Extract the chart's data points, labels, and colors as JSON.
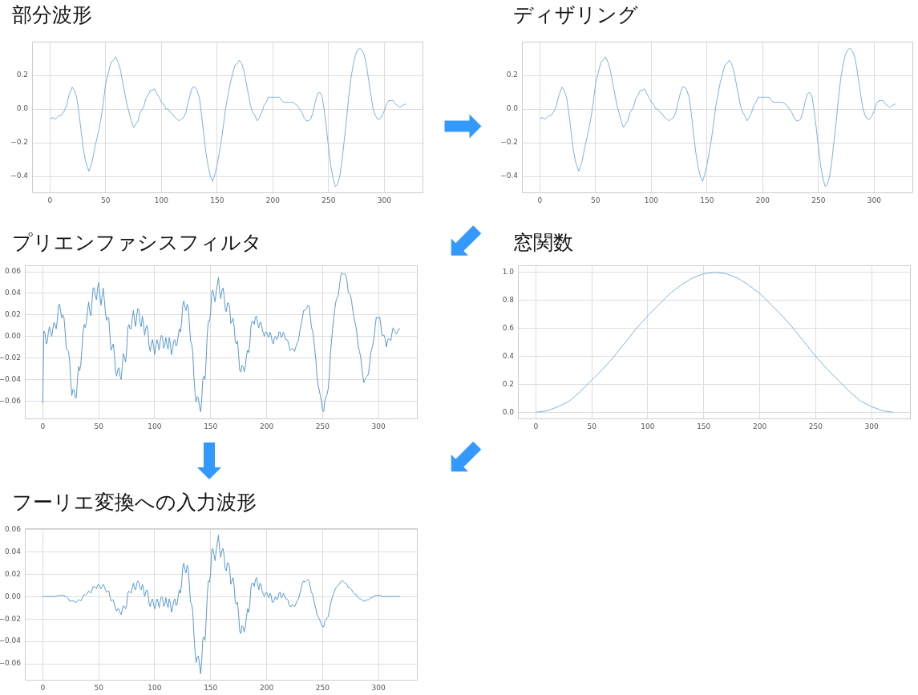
{
  "chart_data": [
    {
      "type": "line",
      "title": "部分波形",
      "color": "#80b2dc",
      "grid": true,
      "xlim": [
        -16,
        335
      ],
      "xticks": [
        0,
        50,
        100,
        150,
        200,
        250,
        300
      ],
      "ylim": [
        -0.5,
        0.4
      ],
      "yticks": [
        {
          "value": -0.4,
          "label": "−0.4"
        },
        {
          "value": -0.2,
          "label": "−0.2"
        },
        {
          "value": 0,
          "label": "0.0"
        },
        {
          "value": 0.2,
          "label": "0.2"
        }
      ],
      "x": [
        0,
        2,
        5,
        8,
        10,
        13,
        15,
        17,
        20,
        22,
        24,
        26,
        28,
        30,
        32,
        35,
        38,
        40,
        42,
        44,
        46,
        48,
        50,
        53,
        55,
        57,
        59,
        61,
        63,
        65,
        67,
        69,
        71,
        73,
        75,
        77,
        79,
        81,
        84,
        86,
        88,
        90,
        92,
        94,
        96,
        98,
        100,
        102,
        104,
        106,
        108,
        110,
        112,
        114,
        116,
        118,
        120,
        122,
        124,
        126,
        128,
        130,
        132,
        134,
        136,
        138,
        140,
        142,
        144,
        146,
        148,
        150,
        152,
        154,
        156,
        158,
        160,
        162,
        164,
        166,
        168,
        170,
        172,
        174,
        176,
        178,
        180,
        182,
        184,
        186,
        188,
        190,
        192,
        194,
        196,
        198,
        200,
        202,
        204,
        206,
        208,
        210,
        212,
        214,
        216,
        218,
        220,
        222,
        224,
        226,
        228,
        230,
        232,
        234,
        236,
        238,
        240,
        242,
        244,
        246,
        248,
        250,
        252,
        254,
        256,
        258,
        260,
        262,
        264,
        266,
        268,
        270,
        272,
        274,
        276,
        278,
        280,
        282,
        284,
        286,
        288,
        290,
        292,
        294,
        296,
        298,
        300,
        302,
        304,
        306,
        308,
        310,
        312,
        314,
        316,
        319
      ],
      "values": [
        -0.06,
        -0.05,
        -0.06,
        -0.04,
        -0.04,
        -0.01,
        0.02,
        0.08,
        0.13,
        0.11,
        0.07,
        -0.02,
        -0.13,
        -0.24,
        -0.31,
        -0.37,
        -0.31,
        -0.24,
        -0.18,
        -0.12,
        -0.05,
        0.04,
        0.15,
        0.23,
        0.28,
        0.29,
        0.31,
        0.28,
        0.24,
        0.17,
        0.1,
        0.03,
        -0.02,
        -0.07,
        -0.11,
        -0.09,
        -0.07,
        -0.02,
        0.01,
        0.06,
        0.08,
        0.11,
        0.11,
        0.12,
        0.09,
        0.07,
        0.04,
        0.03,
        0,
        0,
        -0.02,
        -0.03,
        -0.05,
        -0.06,
        -0.07,
        -0.06,
        -0.05,
        -0.02,
        0.04,
        0.09,
        0.13,
        0.13,
        0.11,
        0.07,
        -0.03,
        -0.15,
        -0.26,
        -0.34,
        -0.4,
        -0.43,
        -0.39,
        -0.33,
        -0.26,
        -0.18,
        -0.08,
        0.02,
        0.09,
        0.16,
        0.21,
        0.26,
        0.27,
        0.29,
        0.27,
        0.23,
        0.16,
        0.09,
        0.02,
        -0.02,
        -0.04,
        -0.07,
        -0.05,
        -0.02,
        0.02,
        0.04,
        0.07,
        0.07,
        0.07,
        0.07,
        0.07,
        0.07,
        0.05,
        0.04,
        0.04,
        0.04,
        0.04,
        0.04,
        0.03,
        0.02,
        0,
        -0.02,
        -0.05,
        -0.07,
        -0.07,
        -0.06,
        -0.02,
        0.04,
        0.09,
        0.1,
        0.08,
        0,
        -0.11,
        -0.23,
        -0.34,
        -0.41,
        -0.46,
        -0.45,
        -0.4,
        -0.31,
        -0.19,
        -0.07,
        0.07,
        0.18,
        0.26,
        0.32,
        0.35,
        0.36,
        0.35,
        0.32,
        0.26,
        0.17,
        0.08,
        0,
        -0.04,
        -0.06,
        -0.06,
        -0.04,
        -0.01,
        0.03,
        0.05,
        0.05,
        0.05,
        0.03,
        0.02,
        0.01,
        0.02,
        0.03
      ]
    },
    {
      "type": "line",
      "title": "ディザリング",
      "color": "#80b2dc",
      "grid": true,
      "xlim": [
        -16,
        335
      ],
      "xticks": [
        0,
        50,
        100,
        150,
        200,
        250,
        300
      ],
      "ylim": [
        -0.5,
        0.4
      ],
      "yticks": [
        {
          "value": -0.4,
          "label": "−0.4"
        },
        {
          "value": -0.2,
          "label": "−0.2"
        },
        {
          "value": 0,
          "label": "0.0"
        },
        {
          "value": 0.2,
          "label": "0.2"
        }
      ],
      "x": [
        0,
        2,
        5,
        8,
        10,
        13,
        15,
        17,
        20,
        22,
        24,
        26,
        28,
        30,
        32,
        35,
        38,
        40,
        42,
        44,
        46,
        48,
        50,
        53,
        55,
        57,
        59,
        61,
        63,
        65,
        67,
        69,
        71,
        73,
        75,
        77,
        79,
        81,
        84,
        86,
        88,
        90,
        92,
        94,
        96,
        98,
        100,
        102,
        104,
        106,
        108,
        110,
        112,
        114,
        116,
        118,
        120,
        122,
        124,
        126,
        128,
        130,
        132,
        134,
        136,
        138,
        140,
        142,
        144,
        146,
        148,
        150,
        152,
        154,
        156,
        158,
        160,
        162,
        164,
        166,
        168,
        170,
        172,
        174,
        176,
        178,
        180,
        182,
        184,
        186,
        188,
        190,
        192,
        194,
        196,
        198,
        200,
        202,
        204,
        206,
        208,
        210,
        212,
        214,
        216,
        218,
        220,
        222,
        224,
        226,
        228,
        230,
        232,
        234,
        236,
        238,
        240,
        242,
        244,
        246,
        248,
        250,
        252,
        254,
        256,
        258,
        260,
        262,
        264,
        266,
        268,
        270,
        272,
        274,
        276,
        278,
        280,
        282,
        284,
        286,
        288,
        290,
        292,
        294,
        296,
        298,
        300,
        302,
        304,
        306,
        308,
        310,
        312,
        314,
        316,
        319
      ],
      "values": [
        -0.06,
        -0.05,
        -0.06,
        -0.04,
        -0.04,
        -0.01,
        0.02,
        0.08,
        0.13,
        0.11,
        0.07,
        -0.02,
        -0.13,
        -0.24,
        -0.31,
        -0.37,
        -0.31,
        -0.24,
        -0.18,
        -0.12,
        -0.05,
        0.04,
        0.15,
        0.23,
        0.28,
        0.29,
        0.31,
        0.28,
        0.24,
        0.17,
        0.1,
        0.03,
        -0.02,
        -0.07,
        -0.11,
        -0.09,
        -0.07,
        -0.02,
        0.01,
        0.06,
        0.08,
        0.11,
        0.11,
        0.12,
        0.09,
        0.07,
        0.04,
        0.03,
        0,
        0,
        -0.02,
        -0.03,
        -0.05,
        -0.06,
        -0.07,
        -0.06,
        -0.05,
        -0.02,
        0.04,
        0.09,
        0.13,
        0.13,
        0.11,
        0.07,
        -0.03,
        -0.15,
        -0.26,
        -0.34,
        -0.4,
        -0.43,
        -0.39,
        -0.33,
        -0.26,
        -0.18,
        -0.08,
        0.02,
        0.09,
        0.16,
        0.21,
        0.26,
        0.27,
        0.29,
        0.27,
        0.23,
        0.16,
        0.09,
        0.02,
        -0.02,
        -0.04,
        -0.07,
        -0.05,
        -0.02,
        0.02,
        0.04,
        0.07,
        0.07,
        0.07,
        0.07,
        0.07,
        0.07,
        0.05,
        0.04,
        0.04,
        0.04,
        0.04,
        0.04,
        0.03,
        0.02,
        0,
        -0.02,
        -0.05,
        -0.07,
        -0.07,
        -0.06,
        -0.02,
        0.04,
        0.09,
        0.1,
        0.08,
        0,
        -0.11,
        -0.23,
        -0.34,
        -0.41,
        -0.46,
        -0.45,
        -0.4,
        -0.31,
        -0.19,
        -0.07,
        0.07,
        0.18,
        0.26,
        0.32,
        0.35,
        0.36,
        0.35,
        0.32,
        0.26,
        0.17,
        0.08,
        0,
        -0.04,
        -0.06,
        -0.06,
        -0.04,
        -0.01,
        0.03,
        0.05,
        0.05,
        0.05,
        0.03,
        0.02,
        0.01,
        0.02,
        0.03
      ]
    },
    {
      "type": "line",
      "title": "プリエンファシスフィルタ",
      "color": "#5b9bd2",
      "grid": true,
      "xlim": [
        -16,
        335
      ],
      "xticks": [
        0,
        50,
        100,
        150,
        200,
        250,
        300
      ],
      "ylim": [
        -0.077,
        0.066
      ],
      "yticks": [
        {
          "value": -0.06,
          "label": "−0.06"
        },
        {
          "value": -0.04,
          "label": "−0.04"
        },
        {
          "value": -0.02,
          "label": "−0.02"
        },
        {
          "value": 0,
          "label": "0.00"
        },
        {
          "value": 0.02,
          "label": "0.02"
        },
        {
          "value": 0.04,
          "label": "0.04"
        },
        {
          "value": 0.06,
          "label": "0.06"
        }
      ],
      "x": [
        0,
        1,
        2,
        3,
        4,
        5,
        6,
        7,
        8,
        9,
        10,
        11,
        12,
        13,
        14,
        15,
        16,
        17,
        18,
        19,
        20,
        21,
        22,
        23,
        24,
        25,
        26,
        27,
        28,
        29,
        30,
        31,
        32,
        33,
        34,
        35,
        36,
        37,
        38,
        39,
        40,
        41,
        42,
        43,
        44,
        45,
        46,
        47,
        48,
        49,
        50,
        51,
        52,
        53,
        54,
        55,
        56,
        57,
        58,
        59,
        60,
        61,
        62,
        63,
        64,
        65,
        66,
        67,
        68,
        69,
        70,
        71,
        72,
        73,
        74,
        75,
        76,
        77,
        78,
        79,
        80,
        81,
        82,
        83,
        84,
        85,
        86,
        87,
        88,
        89,
        90,
        91,
        92,
        93,
        94,
        95,
        96,
        97,
        98,
        99,
        100,
        101,
        102,
        103,
        104,
        105,
        106,
        107,
        108,
        109,
        110,
        111,
        112,
        113,
        114,
        115,
        116,
        117,
        118,
        119,
        120,
        121,
        122,
        123,
        124,
        125,
        126,
        127,
        128,
        129,
        130,
        131,
        132,
        133,
        134,
        135,
        136,
        137,
        138,
        139,
        140,
        141,
        142,
        143,
        144,
        145,
        146,
        147,
        148,
        149,
        150,
        151,
        152,
        153,
        154,
        155,
        156,
        157,
        158,
        159,
        160,
        161,
        162,
        163,
        164,
        165,
        166,
        167,
        168,
        169,
        170,
        171,
        172,
        173,
        174,
        175,
        176,
        177,
        178,
        179,
        180,
        181,
        182,
        183,
        184,
        185,
        186,
        187,
        188,
        189,
        190,
        191,
        192,
        193,
        194,
        195,
        196,
        197,
        198,
        199,
        200,
        201,
        202,
        203,
        204,
        205,
        206,
        207,
        208,
        209,
        210,
        211,
        212,
        213,
        214,
        215,
        216,
        217,
        218,
        219,
        220,
        221,
        222,
        223,
        224,
        225,
        226,
        227,
        228,
        229,
        230,
        231,
        232,
        233,
        234,
        235,
        236,
        237,
        238,
        239,
        240,
        241,
        242,
        243,
        244,
        245,
        246,
        247,
        248,
        249,
        250,
        251,
        252,
        253,
        254,
        255,
        256,
        257,
        258,
        259,
        260,
        261,
        262,
        263,
        264,
        265,
        266,
        267,
        268,
        269,
        270,
        271,
        272,
        273,
        274,
        275,
        276,
        277,
        278,
        279,
        280,
        281,
        282,
        283,
        284,
        285,
        286,
        287,
        288,
        289,
        290,
        291,
        292,
        293,
        294,
        295,
        296,
        297,
        298,
        299,
        300,
        301,
        302,
        303,
        304,
        305,
        306,
        307,
        308,
        309,
        310,
        311,
        312,
        313,
        314,
        315,
        316,
        317,
        318,
        319
      ],
      "values": [
        -0.062,
        0.005,
        0.003,
        -0.007,
        -0.006,
        0.004,
        0.009,
        0.004,
        0,
        0.007,
        0.013,
        0.011,
        0.007,
        0.015,
        0.028,
        0.03,
        0.023,
        0.017,
        0.02,
        0.017,
        0.004,
        -0.011,
        -0.013,
        -0.014,
        -0.022,
        -0.042,
        -0.055,
        -0.049,
        -0.05,
        -0.057,
        -0.057,
        -0.04,
        -0.028,
        -0.032,
        -0.026,
        -0.012,
        0.004,
        0.011,
        0.008,
        0.014,
        0.023,
        0.032,
        0.023,
        0.019,
        0.032,
        0.045,
        0.045,
        0.037,
        0.034,
        0.045,
        0.05,
        0.039,
        0.029,
        0.037,
        0.045,
        0.034,
        0.022,
        0.015,
        0.018,
        0.017,
        0.001,
        -0.013,
        -0.01,
        -0.007,
        -0.017,
        -0.032,
        -0.037,
        -0.031,
        -0.029,
        -0.037,
        -0.04,
        -0.028,
        -0.016,
        -0.019,
        -0.024,
        -0.012,
        0.008,
        0.011,
        0.007,
        0.007,
        0.017,
        0.024,
        0.015,
        0.009,
        0.02,
        0.026,
        0.024,
        0.012,
        0.009,
        0.019,
        0.012,
        0.001,
        0.007,
        0.01,
        0.005,
        -0.009,
        -0.014,
        -0.007,
        -0.003,
        -0.009,
        -0.017,
        -0.009,
        -0.003,
        -0.007,
        -0.013,
        -0.004,
        0.001,
        -0.001,
        -0.011,
        -0.008,
        -0.001,
        -0.008,
        -0.012,
        -0.001,
        -0.007,
        -0.017,
        -0.012,
        -0.004,
        -0.003,
        -0.009,
        -0.007,
        0,
        0.007,
        0.004,
        0.012,
        0.028,
        0.033,
        0.027,
        0.024,
        0.03,
        0.027,
        0.012,
        -0.004,
        -0.007,
        -0.014,
        -0.037,
        -0.052,
        -0.061,
        -0.056,
        -0.057,
        -0.065,
        -0.07,
        -0.059,
        -0.04,
        -0.037,
        -0.04,
        -0.022,
        0.003,
        0.014,
        0.014,
        0.022,
        0.042,
        0.043,
        0.037,
        0.032,
        0.042,
        0.048,
        0.055,
        0.042,
        0.035,
        0.042,
        0.045,
        0.038,
        0.026,
        0.023,
        0.031,
        0.031,
        0.026,
        0.012,
        0.014,
        0.017,
        0.009,
        -0.005,
        -0.007,
        -0.004,
        -0.017,
        -0.032,
        -0.033,
        -0.027,
        -0.028,
        -0.033,
        -0.028,
        -0.018,
        -0.013,
        -0.015,
        -0.007,
        0.009,
        0.014,
        0.014,
        0.011,
        0.018,
        0.019,
        0.012,
        0.008,
        0.013,
        0.013,
        0.007,
        0.003,
        0,
        0.004,
        0.004,
        0.001,
        -0.001,
        0.004,
        0.001,
        -0.005,
        -0.007,
        -0.001,
        0,
        -0.003,
        -0.002,
        0.004,
        0.004,
        -0.001,
        0,
        0.004,
        0.001,
        -0.003,
        -0.003,
        -0.004,
        -0.009,
        -0.013,
        -0.012,
        -0.011,
        -0.013,
        -0.014,
        -0.01,
        -0.007,
        -0.005,
        0,
        0.007,
        0.012,
        0.017,
        0.024,
        0.024,
        0.025,
        0.027,
        0.029,
        0.028,
        0.019,
        0.009,
        0.005,
        -0.001,
        -0.012,
        -0.022,
        -0.037,
        -0.045,
        -0.05,
        -0.055,
        -0.061,
        -0.069,
        -0.07,
        -0.06,
        -0.056,
        -0.054,
        -0.049,
        -0.037,
        -0.017,
        -0.004,
        0.007,
        0.017,
        0.026,
        0.033,
        0.036,
        0.038,
        0.046,
        0.055,
        0.059,
        0.058,
        0.058,
        0.058,
        0.056,
        0.05,
        0.041,
        0.04,
        0.038,
        0.032,
        0.024,
        0.018,
        0.013,
        0.008,
        0,
        -0.01,
        -0.014,
        -0.019,
        -0.028,
        -0.037,
        -0.043,
        -0.04,
        -0.038,
        -0.037,
        -0.035,
        -0.026,
        -0.015,
        -0.012,
        -0.007,
        -0.001,
        0.009,
        0.018,
        0.017,
        0.017,
        0.018,
        0.011,
        0.001,
        0.001,
        0.001,
        -0.003,
        -0.01,
        -0.004,
        -0.002,
        -0.003,
        -0.004,
        0.003,
        0.008,
        0.006,
        0.004,
        0.002,
        0.004,
        0.007,
        0.007
      ]
    },
    {
      "type": "line",
      "title": "窓関数",
      "color": "#80b2dc",
      "grid": true,
      "xlim": [
        -16,
        335
      ],
      "xticks": [
        0,
        50,
        100,
        150,
        200,
        250,
        300
      ],
      "ylim": [
        -0.05,
        1.05
      ],
      "yticks": [
        {
          "value": 0,
          "label": "0.0"
        },
        {
          "value": 0.2,
          "label": "0.2"
        },
        {
          "value": 0.4,
          "label": "0.4"
        },
        {
          "value": 0.6,
          "label": "0.6"
        },
        {
          "value": 0.8,
          "label": "0.8"
        },
        {
          "value": 1,
          "label": "1.0"
        }
      ],
      "x": [
        0,
        10,
        20,
        30,
        40,
        50,
        60,
        70,
        80,
        90,
        100,
        110,
        120,
        130,
        140,
        150,
        160,
        170,
        180,
        190,
        200,
        210,
        220,
        230,
        240,
        250,
        260,
        270,
        280,
        290,
        300,
        310,
        319
      ],
      "values": [
        0,
        0.01,
        0.04,
        0.08,
        0.15,
        0.23,
        0.31,
        0.4,
        0.5,
        0.6,
        0.69,
        0.77,
        0.85,
        0.91,
        0.96,
        0.99,
        1,
        0.99,
        0.96,
        0.91,
        0.85,
        0.77,
        0.69,
        0.6,
        0.5,
        0.4,
        0.31,
        0.23,
        0.15,
        0.08,
        0.04,
        0.01,
        0
      ]
    },
    {
      "type": "line",
      "title": "フーリエ変換への入力波形",
      "color": "#5b9bd2",
      "grid": true,
      "xlim": [
        -16,
        335
      ],
      "xticks": [
        0,
        50,
        100,
        150,
        200,
        250,
        300
      ],
      "ylim": [
        -0.075,
        0.061
      ],
      "yticks": [
        {
          "value": -0.06,
          "label": "−0.06"
        },
        {
          "value": -0.04,
          "label": "−0.04"
        },
        {
          "value": -0.02,
          "label": "−0.02"
        },
        {
          "value": 0,
          "label": "0.00"
        },
        {
          "value": 0.02,
          "label": "0.02"
        },
        {
          "value": 0.04,
          "label": "0.04"
        },
        {
          "value": 0.06,
          "label": "0.06"
        }
      ],
      "x": [
        0,
        1,
        2,
        3,
        4,
        5,
        6,
        7,
        8,
        9,
        10,
        11,
        12,
        13,
        14,
        15,
        16,
        17,
        18,
        19,
        20,
        21,
        22,
        23,
        24,
        25,
        26,
        27,
        28,
        29,
        30,
        31,
        32,
        33,
        34,
        35,
        36,
        37,
        38,
        39,
        40,
        41,
        42,
        43,
        44,
        45,
        46,
        47,
        48,
        49,
        50,
        51,
        52,
        53,
        54,
        55,
        56,
        57,
        58,
        59,
        60,
        61,
        62,
        63,
        64,
        65,
        66,
        67,
        68,
        69,
        70,
        71,
        72,
        73,
        74,
        75,
        76,
        77,
        78,
        79,
        80,
        81,
        82,
        83,
        84,
        85,
        86,
        87,
        88,
        89,
        90,
        91,
        92,
        93,
        94,
        95,
        96,
        97,
        98,
        99,
        100,
        101,
        102,
        103,
        104,
        105,
        106,
        107,
        108,
        109,
        110,
        111,
        112,
        113,
        114,
        115,
        116,
        117,
        118,
        119,
        120,
        121,
        122,
        123,
        124,
        125,
        126,
        127,
        128,
        129,
        130,
        131,
        132,
        133,
        134,
        135,
        136,
        137,
        138,
        139,
        140,
        141,
        142,
        143,
        144,
        145,
        146,
        147,
        148,
        149,
        150,
        151,
        152,
        153,
        154,
        155,
        156,
        157,
        158,
        159,
        160,
        161,
        162,
        163,
        164,
        165,
        166,
        167,
        168,
        169,
        170,
        171,
        172,
        173,
        174,
        175,
        176,
        177,
        178,
        179,
        180,
        181,
        182,
        183,
        184,
        185,
        186,
        187,
        188,
        189,
        190,
        191,
        192,
        193,
        194,
        195,
        196,
        197,
        198,
        199,
        200,
        201,
        202,
        203,
        204,
        205,
        206,
        207,
        208,
        209,
        210,
        211,
        212,
        213,
        214,
        215,
        216,
        217,
        218,
        219,
        220,
        221,
        222,
        223,
        224,
        225,
        226,
        227,
        228,
        229,
        230,
        231,
        232,
        233,
        234,
        235,
        236,
        237,
        238,
        239,
        240,
        241,
        242,
        243,
        244,
        245,
        246,
        247,
        248,
        249,
        250,
        251,
        252,
        253,
        254,
        255,
        256,
        257,
        258,
        259,
        260,
        261,
        262,
        263,
        264,
        265,
        266,
        267,
        268,
        269,
        270,
        271,
        272,
        273,
        274,
        275,
        276,
        277,
        278,
        279,
        280,
        281,
        282,
        283,
        284,
        285,
        286,
        287,
        288,
        289,
        290,
        291,
        292,
        293,
        294,
        295,
        296,
        297,
        298,
        299,
        300,
        301,
        302,
        303,
        304,
        305,
        306,
        307,
        308,
        309,
        310,
        311,
        312,
        313,
        314,
        315,
        316,
        317,
        318,
        319
      ],
      "values": [
        0,
        0,
        0,
        0,
        0,
        0,
        0,
        0,
        0,
        0,
        0,
        0,
        0,
        0.001,
        0.001,
        0.001,
        0.001,
        0.001,
        0.001,
        0.001,
        0,
        0,
        -0.001,
        -0.002,
        -0.004,
        -0.004,
        -0.004,
        -0.004,
        -0.004,
        -0.005,
        -0.005,
        -0.004,
        -0.003,
        -0.003,
        -0.004,
        -0.002,
        0,
        0.002,
        0.001,
        0.002,
        0.003,
        0.005,
        0.004,
        0.003,
        0.006,
        0.009,
        0.009,
        0.008,
        0.007,
        0.01,
        0.011,
        0.009,
        0.007,
        0.009,
        0.011,
        0.009,
        0.006,
        0.004,
        0.005,
        0.005,
        0,
        -0.004,
        -0.003,
        -0.003,
        -0.007,
        -0.011,
        -0.013,
        -0.011,
        -0.011,
        -0.014,
        -0.016,
        -0.012,
        -0.008,
        -0.009,
        -0.011,
        -0.007,
        0.003,
        0.005,
        0.004,
        0.003,
        0.008,
        0.012,
        0.007,
        0.006,
        0.012,
        0.014,
        0.013,
        0.007,
        0.006,
        0.011,
        0.007,
        0,
        0.004,
        0.006,
        0.003,
        -0.006,
        -0.009,
        -0.004,
        -0.002,
        -0.007,
        -0.011,
        -0.007,
        -0.002,
        -0.005,
        -0.01,
        -0.004,
        0,
        -0.001,
        -0.009,
        -0.007,
        -0.001,
        -0.007,
        -0.01,
        -0.002,
        -0.006,
        -0.014,
        -0.01,
        -0.004,
        -0.002,
        -0.008,
        -0.007,
        0,
        0.006,
        0.003,
        0.011,
        0.025,
        0.03,
        0.024,
        0.021,
        0.028,
        0.025,
        0.01,
        -0.005,
        -0.007,
        -0.013,
        -0.033,
        -0.048,
        -0.059,
        -0.054,
        -0.053,
        -0.06,
        -0.069,
        -0.058,
        -0.038,
        -0.036,
        -0.039,
        -0.021,
        0.002,
        0.014,
        0.013,
        0.021,
        0.042,
        0.043,
        0.037,
        0.032,
        0.042,
        0.048,
        0.055,
        0.042,
        0.035,
        0.041,
        0.043,
        0.037,
        0.025,
        0.023,
        0.03,
        0.03,
        0.025,
        0.011,
        0.014,
        0.017,
        0.009,
        -0.005,
        -0.007,
        -0.005,
        -0.016,
        -0.031,
        -0.033,
        -0.026,
        -0.027,
        -0.032,
        -0.027,
        -0.018,
        -0.011,
        -0.014,
        -0.007,
        0.008,
        0.012,
        0.012,
        0.009,
        0.015,
        0.017,
        0.011,
        0.006,
        0.012,
        0.011,
        0.005,
        0.002,
        0,
        0.003,
        0.004,
        0.001,
        -0.001,
        0.003,
        0.001,
        -0.005,
        -0.005,
        -0.002,
        0,
        -0.003,
        -0.002,
        0.003,
        0.004,
        -0.001,
        0,
        0.003,
        0.001,
        -0.002,
        -0.002,
        -0.003,
        -0.007,
        -0.009,
        -0.009,
        -0.007,
        -0.008,
        -0.009,
        -0.007,
        -0.004,
        -0.003,
        0,
        0.004,
        0.008,
        0.012,
        0.014,
        0.013,
        0.014,
        0.015,
        0.015,
        0.014,
        0.008,
        0.004,
        0.002,
        -0.002,
        -0.007,
        -0.011,
        -0.016,
        -0.018,
        -0.02,
        -0.022,
        -0.025,
        -0.027,
        -0.027,
        -0.022,
        -0.021,
        -0.019,
        -0.018,
        -0.013,
        -0.007,
        -0.003,
        0,
        0.003,
        0.006,
        0.008,
        0.009,
        0.01,
        0.011,
        0.013,
        0.014,
        0.014,
        0.013,
        0.012,
        0.012,
        0.01,
        0.008,
        0.008,
        0.007,
        0.006,
        0.004,
        0.003,
        0.002,
        0.002,
        0,
        -0.001,
        -0.002,
        -0.002,
        -0.003,
        -0.004,
        -0.004,
        -0.004,
        -0.003,
        -0.003,
        -0.003,
        -0.002,
        -0.001,
        -0.001,
        0,
        0,
        0.001,
        0.001,
        0.001,
        0.001,
        0.001,
        0.001,
        0,
        0,
        0,
        0,
        0,
        0,
        0,
        0,
        0,
        0,
        0,
        0,
        0,
        0,
        0,
        0,
        0
      ]
    }
  ]
}
